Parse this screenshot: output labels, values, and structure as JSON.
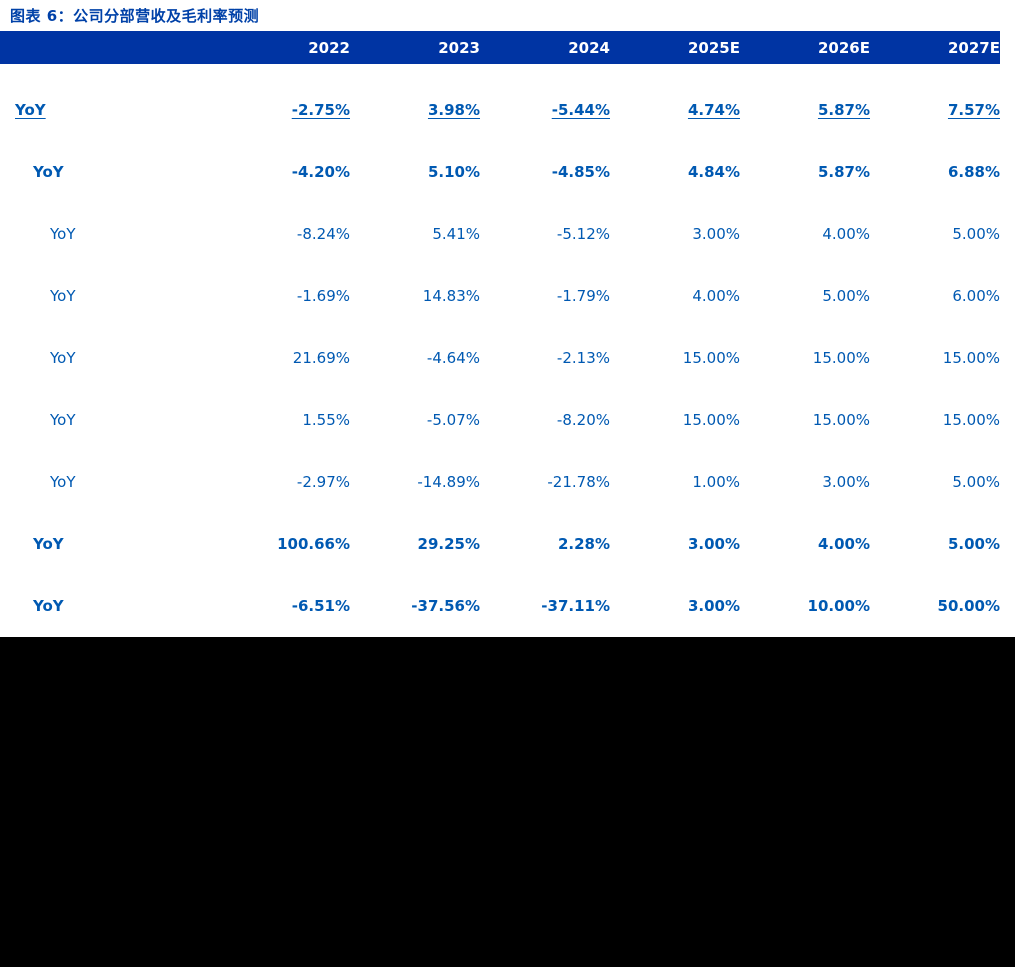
{
  "title": "图表 6：公司分部营收及毛利率预测",
  "chart_data": {
    "type": "table",
    "title": "图表 6：公司分部营收及毛利率预测",
    "columns": [
      "2022",
      "2023",
      "2024",
      "2025E",
      "2026E",
      "2027E"
    ],
    "rows": [
      {
        "label": "YoY",
        "indent": 0,
        "bold": true,
        "underline": true,
        "values": [
          "-2.75%",
          "3.98%",
          "-5.44%",
          "4.74%",
          "5.87%",
          "7.57%"
        ]
      },
      {
        "label": "YoY",
        "indent": 1,
        "bold": true,
        "underline": false,
        "values": [
          "-4.20%",
          "5.10%",
          "-4.85%",
          "4.84%",
          "5.87%",
          "6.88%"
        ]
      },
      {
        "label": "YoY",
        "indent": 2,
        "bold": false,
        "underline": false,
        "values": [
          "-8.24%",
          "5.41%",
          "-5.12%",
          "3.00%",
          "4.00%",
          "5.00%"
        ]
      },
      {
        "label": "YoY",
        "indent": 2,
        "bold": false,
        "underline": false,
        "values": [
          "-1.69%",
          "14.83%",
          "-1.79%",
          "4.00%",
          "5.00%",
          "6.00%"
        ]
      },
      {
        "label": "YoY",
        "indent": 2,
        "bold": false,
        "underline": false,
        "values": [
          "21.69%",
          "-4.64%",
          "-2.13%",
          "15.00%",
          "15.00%",
          "15.00%"
        ]
      },
      {
        "label": "YoY",
        "indent": 2,
        "bold": false,
        "underline": false,
        "values": [
          "1.55%",
          "-5.07%",
          "-8.20%",
          "15.00%",
          "15.00%",
          "15.00%"
        ]
      },
      {
        "label": "YoY",
        "indent": 2,
        "bold": false,
        "underline": false,
        "values": [
          "-2.97%",
          "-14.89%",
          "-21.78%",
          "1.00%",
          "3.00%",
          "5.00%"
        ]
      },
      {
        "label": "YoY",
        "indent": 1,
        "bold": true,
        "underline": false,
        "values": [
          "100.66%",
          "29.25%",
          "2.28%",
          "3.00%",
          "4.00%",
          "5.00%"
        ]
      },
      {
        "label": "YoY",
        "indent": 1,
        "bold": true,
        "underline": false,
        "values": [
          "-6.51%",
          "-37.56%",
          "-37.11%",
          "3.00%",
          "10.00%",
          "50.00%"
        ]
      }
    ]
  },
  "colors": {
    "page_bg": "#FFFFFF",
    "header_bg": "#0034A3",
    "header_text": "#FFFFFF",
    "title_text": "#0041A8",
    "row_text": "#0059B2",
    "bottom_area": "#000000"
  }
}
